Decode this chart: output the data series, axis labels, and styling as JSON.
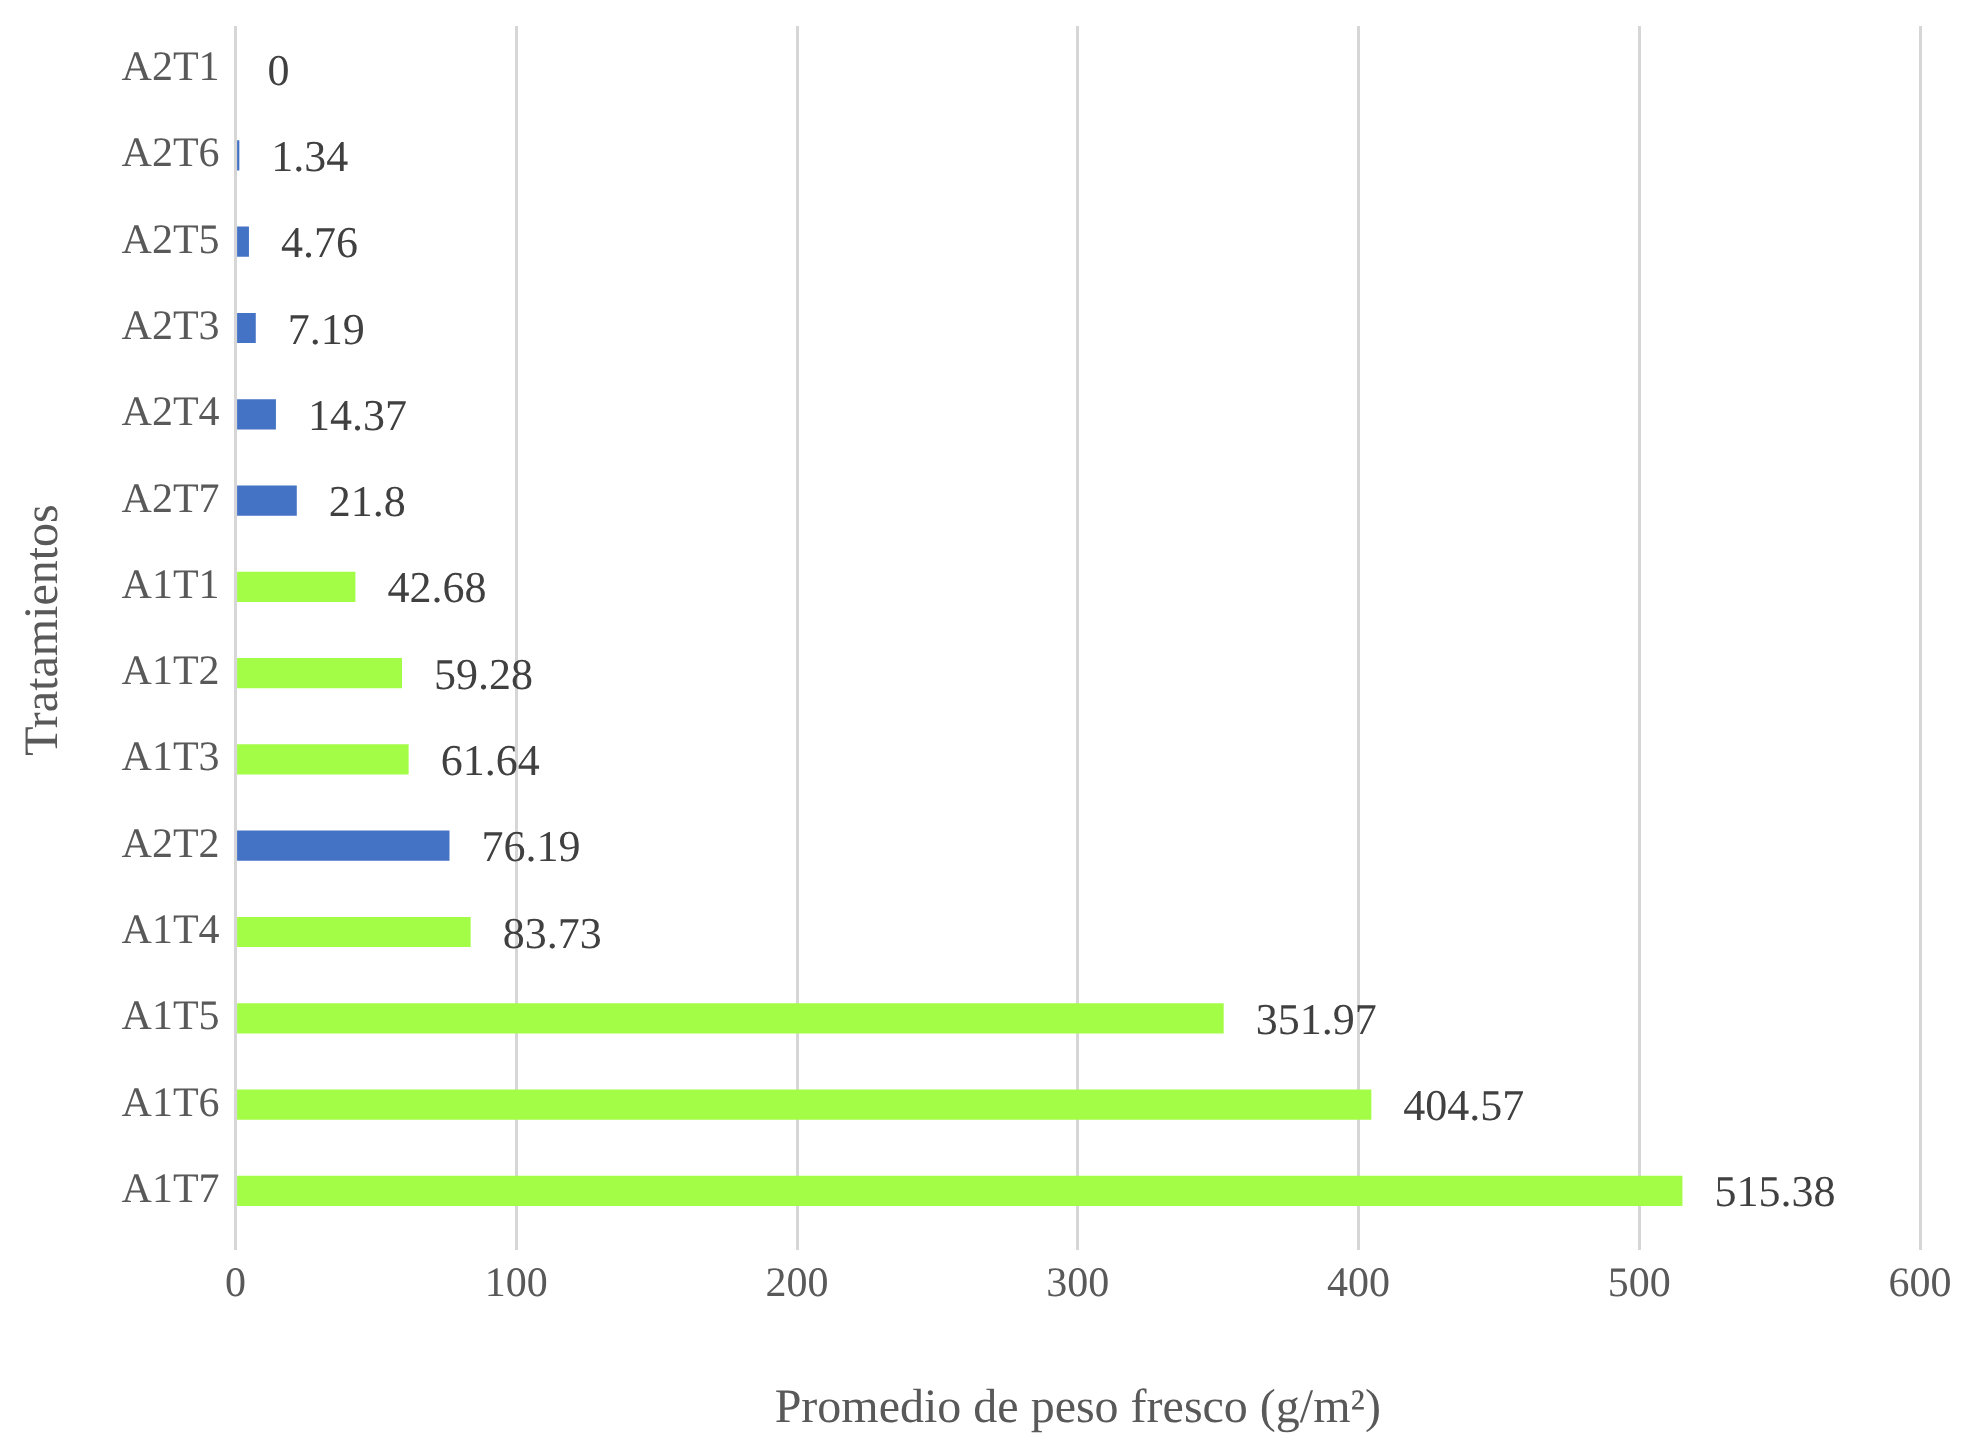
{
  "chart_data": {
    "type": "bar",
    "orientation": "horizontal",
    "xlabel": "Promedio de peso fresco (g/m²)",
    "ylabel": "Tratamientos",
    "categories": [
      "A2T1",
      "A2T6",
      "A2T5",
      "A2T3",
      "A2T4",
      "A2T7",
      "A1T1",
      "A1T2",
      "A1T3",
      "A2T2",
      "A1T4",
      "A1T5",
      "A1T6",
      "A1T7"
    ],
    "values": [
      0,
      1.34,
      4.76,
      7.19,
      14.37,
      21.8,
      42.68,
      59.28,
      61.64,
      76.19,
      83.73,
      351.97,
      404.57,
      515.38
    ],
    "colors": [
      "#4472c4",
      "#4472c4",
      "#4472c4",
      "#4472c4",
      "#4472c4",
      "#4472c4",
      "#a3fd47",
      "#a3fd47",
      "#a3fd47",
      "#4472c4",
      "#a3fd47",
      "#a3fd47",
      "#a3fd47",
      "#a3fd47"
    ],
    "xlim": [
      0,
      600
    ],
    "xticks": [
      0,
      100,
      200,
      300,
      400,
      500,
      600
    ],
    "grid": "x",
    "data_labels": true
  }
}
